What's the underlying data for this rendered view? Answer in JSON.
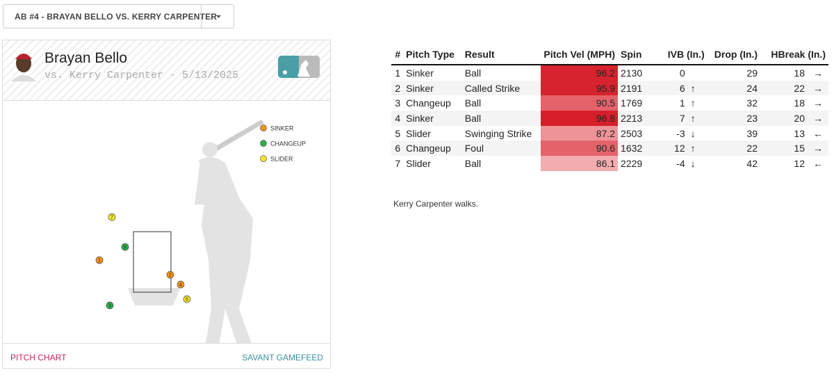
{
  "dropdown": {
    "label": "AB #4 - BRAYAN BELLO VS. KERRY CARPENTER"
  },
  "card": {
    "pitcher": "Brayan Bello",
    "subtitle": "vs. Kerry Carpenter - 5/13/2025",
    "legend": [
      {
        "name": "SINKER",
        "color": "#f7941d"
      },
      {
        "name": "CHANGEUP",
        "color": "#2bb24c"
      },
      {
        "name": "SLIDER",
        "color": "#f2e430"
      }
    ],
    "footer_left": "PITCH CHART",
    "footer_right": "SAVANT GAMEFEED"
  },
  "table": {
    "headers": [
      "#",
      "Pitch Type",
      "Result",
      "Pitch Vel (MPH)",
      "Spin",
      "IVB (In.)",
      "Drop (In.)",
      "HBreak (In.)"
    ],
    "rows": [
      {
        "num": 1,
        "pitch_type": "Sinker",
        "result": "Ball",
        "velo": 96.2,
        "velo_color": "#d7232f",
        "spin": 2130,
        "ivb": 0,
        "drop": 29,
        "hbreak": 18,
        "hbreak_arrow": "→"
      },
      {
        "num": 2,
        "pitch_type": "Sinker",
        "result": "Called Strike",
        "velo": 95.9,
        "velo_color": "#d7232f",
        "spin": 2191,
        "ivb": 6,
        "ivb_arrow": "↑",
        "drop": 24,
        "hbreak": 22,
        "hbreak_arrow": "→"
      },
      {
        "num": 3,
        "pitch_type": "Changeup",
        "result": "Ball",
        "velo": 90.5,
        "velo_color": "#e4636b",
        "spin": 1769,
        "ivb": 1,
        "ivb_arrow": "↑",
        "drop": 32,
        "hbreak": 18,
        "hbreak_arrow": "→"
      },
      {
        "num": 4,
        "pitch_type": "Sinker",
        "result": "Ball",
        "velo": 96.8,
        "velo_color": "#d61f2b",
        "spin": 2213,
        "ivb": 7,
        "ivb_arrow": "↑",
        "drop": 23,
        "hbreak": 20,
        "hbreak_arrow": "→"
      },
      {
        "num": 5,
        "pitch_type": "Slider",
        "result": "Swinging Strike",
        "velo": 87.2,
        "velo_color": "#ee9398",
        "spin": 2503,
        "ivb": -3,
        "ivb_arrow": "↓",
        "drop": 39,
        "hbreak": 13,
        "hbreak_arrow": "←"
      },
      {
        "num": 6,
        "pitch_type": "Changeup",
        "result": "Foul",
        "velo": 90.6,
        "velo_color": "#e4636b",
        "spin": 1632,
        "ivb": 12,
        "ivb_arrow": "↑",
        "drop": 22,
        "hbreak": 15,
        "hbreak_arrow": "→"
      },
      {
        "num": 7,
        "pitch_type": "Slider",
        "result": "Ball",
        "velo": 86.1,
        "velo_color": "#f3adb1",
        "spin": 2229,
        "ivb": -4,
        "ivb_arrow": "↓",
        "drop": 42,
        "hbreak": 12,
        "hbreak_arrow": "←"
      }
    ]
  },
  "summary": "Kerry Carpenter walks."
}
